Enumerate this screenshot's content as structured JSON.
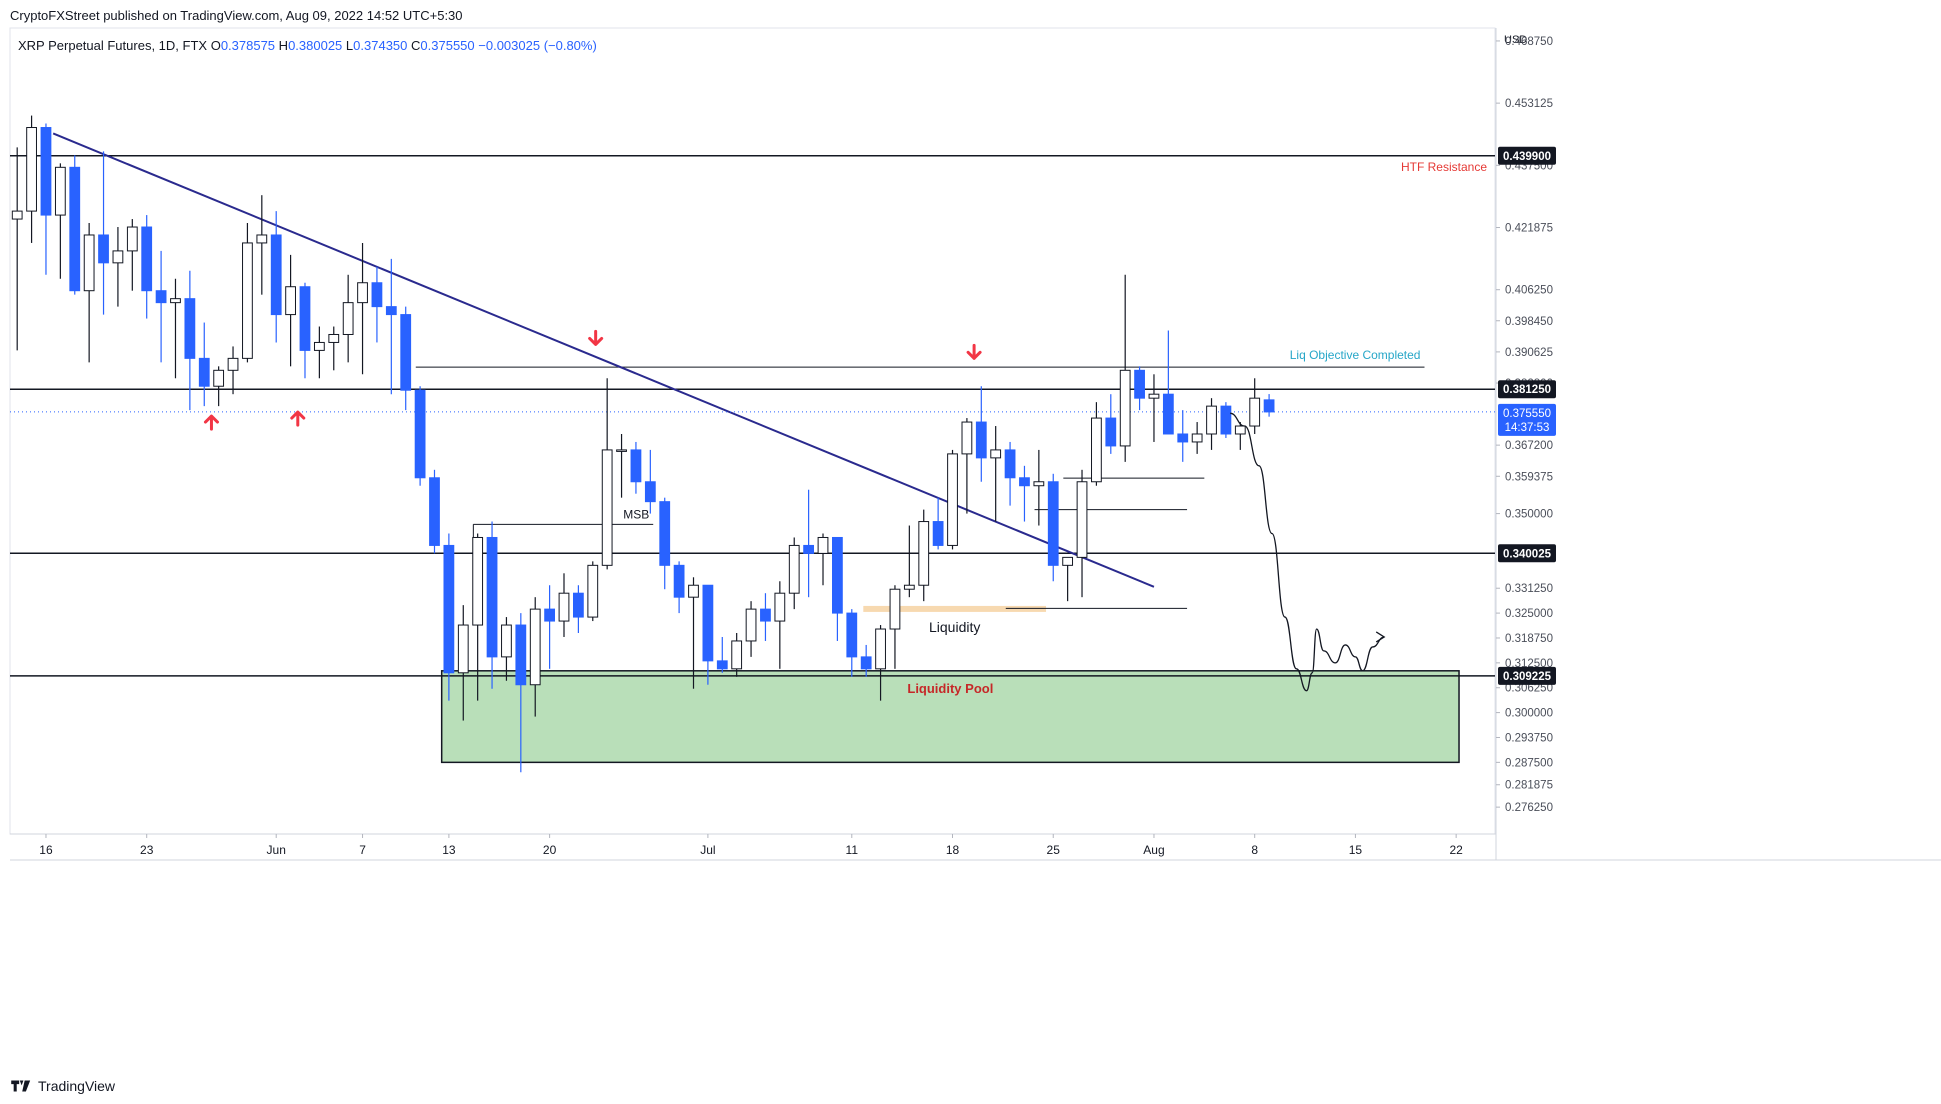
{
  "header": {
    "published": "CryptoFXStreet published on TradingView.com, Aug 09, 2022 14:52 UTC+5:30"
  },
  "legend": {
    "symbol": "XRP Perpetual Futures, 1D, FTX",
    "o_label": "O",
    "o": "0.378575",
    "h_label": "H",
    "h": "0.380025",
    "l_label": "L",
    "l": "0.374350",
    "c_label": "C",
    "c": "0.375550",
    "chg": "−0.003025 (−0.80%)"
  },
  "footer": {
    "brand": "TradingView"
  },
  "colors": {
    "bull_fill": "#ffffff",
    "bear_fill": "#2962ff",
    "wick_bear": "#2962ff",
    "outline": "#131722",
    "trendline": "#2a2a8e",
    "pool_fill": "#b9dfb9",
    "liq_fill": "#f7d9b0",
    "resistance_text": "#e53935",
    "objective_text": "#26a6c8",
    "pool_text": "#c62828",
    "arrow": "#f23645",
    "price_label": "#2962ff"
  },
  "chart_data": {
    "type": "candlestick",
    "currency": "USD",
    "ylim": [
      0.2695,
      0.4715
    ],
    "y_ticks": [
      "0.468750",
      "0.453125",
      "0.437500",
      "0.421875",
      "0.406250",
      "0.398450",
      "0.390625",
      "0.382800",
      "0.367200",
      "0.359375",
      "0.350000",
      "0.331250",
      "0.325000",
      "0.318750",
      "0.312500",
      "0.306250",
      "0.300000",
      "0.293750",
      "0.287500",
      "0.281875",
      "0.276250"
    ],
    "x_ticks": [
      {
        "label": "16",
        "i": 2
      },
      {
        "label": "23",
        "i": 9
      },
      {
        "label": "Jun",
        "i": 18
      },
      {
        "label": "7",
        "i": 24
      },
      {
        "label": "13",
        "i": 30
      },
      {
        "label": "20",
        "i": 37
      },
      {
        "label": "Jul",
        "i": 48
      },
      {
        "label": "11",
        "i": 58
      },
      {
        "label": "18",
        "i": 65
      },
      {
        "label": "25",
        "i": 72
      },
      {
        "label": "Aug",
        "i": 79
      },
      {
        "label": "8",
        "i": 86
      },
      {
        "label": "15",
        "i": 93
      },
      {
        "label": "22",
        "i": 100
      }
    ],
    "x_range": [
      -0.5,
      102.7
    ],
    "candles": [
      {
        "o": 0.424,
        "h": 0.442,
        "l": 0.391,
        "c": 0.426
      },
      {
        "o": 0.426,
        "h": 0.45,
        "l": 0.418,
        "c": 0.447
      },
      {
        "o": 0.447,
        "h": 0.448,
        "l": 0.41,
        "c": 0.425
      },
      {
        "o": 0.425,
        "h": 0.438,
        "l": 0.409,
        "c": 0.437
      },
      {
        "o": 0.437,
        "h": 0.44,
        "l": 0.405,
        "c": 0.406
      },
      {
        "o": 0.406,
        "h": 0.423,
        "l": 0.388,
        "c": 0.42
      },
      {
        "o": 0.42,
        "h": 0.441,
        "l": 0.4,
        "c": 0.413
      },
      {
        "o": 0.413,
        "h": 0.422,
        "l": 0.402,
        "c": 0.416
      },
      {
        "o": 0.416,
        "h": 0.424,
        "l": 0.406,
        "c": 0.422
      },
      {
        "o": 0.422,
        "h": 0.425,
        "l": 0.399,
        "c": 0.406
      },
      {
        "o": 0.406,
        "h": 0.416,
        "l": 0.388,
        "c": 0.403
      },
      {
        "o": 0.403,
        "h": 0.409,
        "l": 0.384,
        "c": 0.404
      },
      {
        "o": 0.404,
        "h": 0.411,
        "l": 0.376,
        "c": 0.389
      },
      {
        "o": 0.389,
        "h": 0.398,
        "l": 0.377,
        "c": 0.382
      },
      {
        "o": 0.382,
        "h": 0.387,
        "l": 0.377,
        "c": 0.386
      },
      {
        "o": 0.386,
        "h": 0.392,
        "l": 0.38,
        "c": 0.389
      },
      {
        "o": 0.389,
        "h": 0.423,
        "l": 0.388,
        "c": 0.418
      },
      {
        "o": 0.418,
        "h": 0.43,
        "l": 0.405,
        "c": 0.42
      },
      {
        "o": 0.42,
        "h": 0.426,
        "l": 0.393,
        "c": 0.4
      },
      {
        "o": 0.4,
        "h": 0.415,
        "l": 0.387,
        "c": 0.407
      },
      {
        "o": 0.407,
        "h": 0.408,
        "l": 0.384,
        "c": 0.391
      },
      {
        "o": 0.391,
        "h": 0.397,
        "l": 0.384,
        "c": 0.393
      },
      {
        "o": 0.393,
        "h": 0.397,
        "l": 0.386,
        "c": 0.395
      },
      {
        "o": 0.395,
        "h": 0.41,
        "l": 0.388,
        "c": 0.403
      },
      {
        "o": 0.403,
        "h": 0.418,
        "l": 0.385,
        "c": 0.408
      },
      {
        "o": 0.408,
        "h": 0.412,
        "l": 0.393,
        "c": 0.402
      },
      {
        "o": 0.402,
        "h": 0.414,
        "l": 0.38,
        "c": 0.4
      },
      {
        "o": 0.4,
        "h": 0.402,
        "l": 0.376,
        "c": 0.381
      },
      {
        "o": 0.381,
        "h": 0.382,
        "l": 0.357,
        "c": 0.359
      },
      {
        "o": 0.359,
        "h": 0.361,
        "l": 0.34,
        "c": 0.342
      },
      {
        "o": 0.342,
        "h": 0.345,
        "l": 0.303,
        "c": 0.31
      },
      {
        "o": 0.31,
        "h": 0.327,
        "l": 0.298,
        "c": 0.322
      },
      {
        "o": 0.322,
        "h": 0.345,
        "l": 0.303,
        "c": 0.344
      },
      {
        "o": 0.344,
        "h": 0.348,
        "l": 0.306,
        "c": 0.314
      },
      {
        "o": 0.314,
        "h": 0.324,
        "l": 0.308,
        "c": 0.322
      },
      {
        "o": 0.322,
        "h": 0.325,
        "l": 0.285,
        "c": 0.307
      },
      {
        "o": 0.307,
        "h": 0.329,
        "l": 0.299,
        "c": 0.326
      },
      {
        "o": 0.326,
        "h": 0.332,
        "l": 0.311,
        "c": 0.323
      },
      {
        "o": 0.323,
        "h": 0.335,
        "l": 0.319,
        "c": 0.33
      },
      {
        "o": 0.33,
        "h": 0.332,
        "l": 0.32,
        "c": 0.324
      },
      {
        "o": 0.324,
        "h": 0.338,
        "l": 0.323,
        "c": 0.337
      },
      {
        "o": 0.337,
        "h": 0.384,
        "l": 0.336,
        "c": 0.366
      },
      {
        "o": 0.366,
        "h": 0.37,
        "l": 0.354,
        "c": 0.366
      },
      {
        "o": 0.366,
        "h": 0.368,
        "l": 0.355,
        "c": 0.358
      },
      {
        "o": 0.358,
        "h": 0.366,
        "l": 0.35,
        "c": 0.353
      },
      {
        "o": 0.353,
        "h": 0.354,
        "l": 0.331,
        "c": 0.337
      },
      {
        "o": 0.337,
        "h": 0.338,
        "l": 0.325,
        "c": 0.329
      },
      {
        "o": 0.329,
        "h": 0.334,
        "l": 0.306,
        "c": 0.332
      },
      {
        "o": 0.332,
        "h": 0.332,
        "l": 0.307,
        "c": 0.313
      },
      {
        "o": 0.313,
        "h": 0.319,
        "l": 0.31,
        "c": 0.311
      },
      {
        "o": 0.311,
        "h": 0.32,
        "l": 0.309,
        "c": 0.318
      },
      {
        "o": 0.318,
        "h": 0.328,
        "l": 0.314,
        "c": 0.326
      },
      {
        "o": 0.326,
        "h": 0.33,
        "l": 0.318,
        "c": 0.323
      },
      {
        "o": 0.323,
        "h": 0.333,
        "l": 0.311,
        "c": 0.33
      },
      {
        "o": 0.33,
        "h": 0.344,
        "l": 0.326,
        "c": 0.342
      },
      {
        "o": 0.342,
        "h": 0.356,
        "l": 0.329,
        "c": 0.34
      },
      {
        "o": 0.34,
        "h": 0.345,
        "l": 0.332,
        "c": 0.344
      },
      {
        "o": 0.344,
        "h": 0.344,
        "l": 0.318,
        "c": 0.325
      },
      {
        "o": 0.325,
        "h": 0.326,
        "l": 0.309,
        "c": 0.314
      },
      {
        "o": 0.314,
        "h": 0.317,
        "l": 0.309,
        "c": 0.311
      },
      {
        "o": 0.311,
        "h": 0.322,
        "l": 0.303,
        "c": 0.321
      },
      {
        "o": 0.321,
        "h": 0.332,
        "l": 0.311,
        "c": 0.331
      },
      {
        "o": 0.331,
        "h": 0.347,
        "l": 0.329,
        "c": 0.332
      },
      {
        "o": 0.332,
        "h": 0.351,
        "l": 0.328,
        "c": 0.348
      },
      {
        "o": 0.348,
        "h": 0.354,
        "l": 0.341,
        "c": 0.342
      },
      {
        "o": 0.342,
        "h": 0.366,
        "l": 0.341,
        "c": 0.365
      },
      {
        "o": 0.365,
        "h": 0.374,
        "l": 0.35,
        "c": 0.373
      },
      {
        "o": 0.373,
        "h": 0.382,
        "l": 0.358,
        "c": 0.364
      },
      {
        "o": 0.364,
        "h": 0.372,
        "l": 0.348,
        "c": 0.366
      },
      {
        "o": 0.366,
        "h": 0.368,
        "l": 0.352,
        "c": 0.359
      },
      {
        "o": 0.359,
        "h": 0.362,
        "l": 0.348,
        "c": 0.357
      },
      {
        "o": 0.357,
        "h": 0.366,
        "l": 0.347,
        "c": 0.358
      },
      {
        "o": 0.358,
        "h": 0.36,
        "l": 0.333,
        "c": 0.337
      },
      {
        "o": 0.337,
        "h": 0.339,
        "l": 0.328,
        "c": 0.339
      },
      {
        "o": 0.339,
        "h": 0.361,
        "l": 0.329,
        "c": 0.358
      },
      {
        "o": 0.358,
        "h": 0.378,
        "l": 0.357,
        "c": 0.374
      },
      {
        "o": 0.374,
        "h": 0.38,
        "l": 0.365,
        "c": 0.367
      },
      {
        "o": 0.367,
        "h": 0.41,
        "l": 0.363,
        "c": 0.386
      },
      {
        "o": 0.386,
        "h": 0.387,
        "l": 0.376,
        "c": 0.379
      },
      {
        "o": 0.379,
        "h": 0.385,
        "l": 0.368,
        "c": 0.38
      },
      {
        "o": 0.38,
        "h": 0.396,
        "l": 0.37,
        "c": 0.37
      },
      {
        "o": 0.37,
        "h": 0.376,
        "l": 0.363,
        "c": 0.368
      },
      {
        "o": 0.368,
        "h": 0.373,
        "l": 0.365,
        "c": 0.37
      },
      {
        "o": 0.37,
        "h": 0.379,
        "l": 0.366,
        "c": 0.377
      },
      {
        "o": 0.377,
        "h": 0.378,
        "l": 0.369,
        "c": 0.37
      },
      {
        "o": 0.37,
        "h": 0.373,
        "l": 0.366,
        "c": 0.372
      },
      {
        "o": 0.372,
        "h": 0.384,
        "l": 0.37,
        "c": 0.379
      },
      {
        "o": 0.378575,
        "h": 0.380025,
        "l": 0.37435,
        "c": 0.37555
      }
    ],
    "levels": [
      {
        "name": "htf-resistance",
        "value": 0.4399,
        "label": "0.439900",
        "annotation": "HTF Resistance"
      },
      {
        "name": "level-381",
        "value": 0.38125,
        "label": "0.381250"
      },
      {
        "name": "level-340",
        "value": 0.340025,
        "label": "0.340025"
      },
      {
        "name": "level-309",
        "value": 0.309225,
        "label": "0.309225"
      }
    ],
    "current_price": {
      "value": 0.37555,
      "label": "0.375550",
      "countdown": "14:37:53"
    },
    "annotations": {
      "liq_objective": "Liq Objective Completed",
      "msb": "MSB",
      "liquidity": "Liquidity",
      "liquidity_pool": "Liquidity Pool"
    },
    "liquidity_pool": {
      "top": 0.3105,
      "bottom": 0.2875,
      "i_start": 29.5,
      "i_end": 100.2
    },
    "liquidity_zone": {
      "y1": 0.3268,
      "y2": 0.3258,
      "i_start": 58.8,
      "i_end": 71.5
    },
    "trendline": {
      "i1": 2.5,
      "y1": 0.4455,
      "i2": 79,
      "y2": 0.3316
    },
    "swing_lines": [
      {
        "i1": 27.7,
        "i2": 97.8,
        "y": 0.3868
      },
      {
        "i1": 31.7,
        "i2": 44.2,
        "y": 0.3473
      },
      {
        "i1": 72.7,
        "i2": 82.5,
        "y": 0.3589
      },
      {
        "i1": 70.7,
        "i2": 81.3,
        "y": 0.351
      },
      {
        "i1": 68.7,
        "i2": 81.3,
        "y": 0.3262
      }
    ],
    "arrows_up": [
      {
        "i": 13.5,
        "y": 0.3745
      },
      {
        "i": 19.5,
        "y": 0.3755
      }
    ],
    "arrows_down": [
      {
        "i": 40.2,
        "y": 0.3925
      },
      {
        "i": 66.5,
        "y": 0.389
      }
    ],
    "projection": [
      {
        "i": 84.3,
        "y": 0.3752
      },
      {
        "i": 85.3,
        "y": 0.372
      },
      {
        "i": 86.3,
        "y": 0.362
      },
      {
        "i": 87.2,
        "y": 0.345
      },
      {
        "i": 88.1,
        "y": 0.324
      },
      {
        "i": 88.9,
        "y": 0.311
      },
      {
        "i": 89.6,
        "y": 0.3055
      },
      {
        "i": 90.0,
        "y": 0.31
      },
      {
        "i": 90.3,
        "y": 0.321
      },
      {
        "i": 90.8,
        "y": 0.3155
      },
      {
        "i": 91.6,
        "y": 0.3125
      },
      {
        "i": 92.3,
        "y": 0.317
      },
      {
        "i": 93.0,
        "y": 0.314
      },
      {
        "i": 93.5,
        "y": 0.3105
      },
      {
        "i": 94.2,
        "y": 0.3165
      },
      {
        "i": 95.0,
        "y": 0.319
      }
    ]
  }
}
